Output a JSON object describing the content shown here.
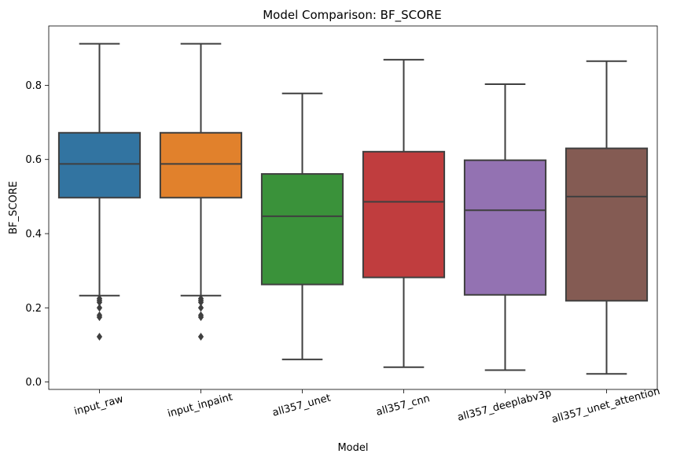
{
  "chart_data": {
    "type": "box",
    "title": "Model Comparison: BF_SCORE",
    "xlabel": "Model",
    "ylabel": "BF_SCORE",
    "ylim": [
      -0.02,
      0.96
    ],
    "yticks": [
      "0.0",
      "0.2",
      "0.4",
      "0.6",
      "0.8"
    ],
    "grid": false,
    "categories": [
      "input_raw",
      "input_inpaint",
      "all357_unet",
      "all357_cnn",
      "all357_deeplabv3p",
      "all357_unet_attention"
    ],
    "series": [
      {
        "color": "#3274a1",
        "whisker_low": 0.233,
        "q1": 0.497,
        "median": 0.588,
        "q3": 0.672,
        "whisker_high": 0.912,
        "outliers": [
          0.225,
          0.22,
          0.215,
          0.2,
          0.18,
          0.175,
          0.122
        ]
      },
      {
        "color": "#e1812c",
        "whisker_low": 0.233,
        "q1": 0.497,
        "median": 0.588,
        "q3": 0.672,
        "whisker_high": 0.912,
        "outliers": [
          0.225,
          0.22,
          0.215,
          0.2,
          0.18,
          0.175,
          0.122
        ]
      },
      {
        "color": "#3a923a",
        "whisker_low": 0.061,
        "q1": 0.263,
        "median": 0.447,
        "q3": 0.561,
        "whisker_high": 0.778,
        "outliers": []
      },
      {
        "color": "#c03d3e",
        "whisker_low": 0.04,
        "q1": 0.282,
        "median": 0.486,
        "q3": 0.621,
        "whisker_high": 0.869,
        "outliers": []
      },
      {
        "color": "#9372b2",
        "whisker_low": 0.032,
        "q1": 0.235,
        "median": 0.463,
        "q3": 0.598,
        "whisker_high": 0.803,
        "outliers": []
      },
      {
        "color": "#845b53",
        "whisker_low": 0.022,
        "q1": 0.219,
        "median": 0.5,
        "q3": 0.63,
        "whisker_high": 0.865,
        "outliers": []
      }
    ]
  }
}
